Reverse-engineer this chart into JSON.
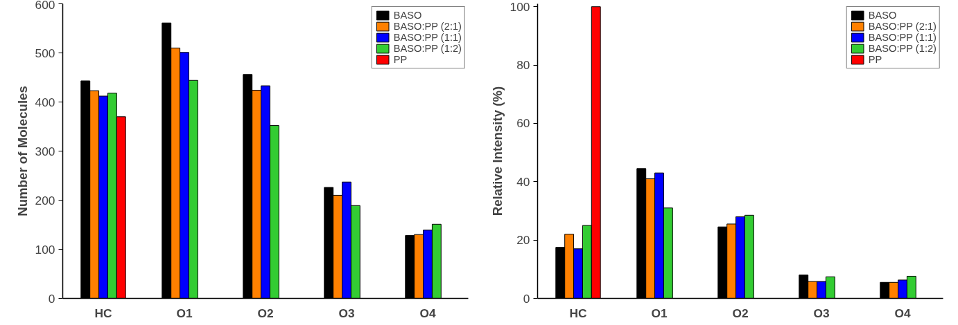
{
  "chart_data": [
    {
      "type": "bar",
      "ylabel": "Number of Molecules",
      "categories": [
        "HC",
        "O1",
        "O2",
        "O3",
        "O4"
      ],
      "ylim": [
        0,
        600
      ],
      "yticks": [
        0,
        100,
        200,
        300,
        400,
        500,
        600
      ],
      "grid": false,
      "legend": "top right",
      "series": [
        {
          "name": "BASO",
          "color": "#000000",
          "values": [
            443,
            561,
            456,
            226,
            128
          ]
        },
        {
          "name": "BASO:PP (2:1)",
          "color": "#ff8000",
          "values": [
            423,
            510,
            424,
            210,
            130
          ]
        },
        {
          "name": "BASO:PP (1:1)",
          "color": "#0000ff",
          "values": [
            412,
            501,
            433,
            237,
            139
          ]
        },
        {
          "name": "BASO:PP (1:2)",
          "color": "#33cc33",
          "values": [
            418,
            444,
            352,
            189,
            151
          ]
        },
        {
          "name": "PP",
          "color": "#ff0000",
          "values": [
            370,
            null,
            null,
            null,
            null
          ]
        }
      ]
    },
    {
      "type": "bar",
      "ylabel": "Relative Intensity (%)",
      "categories": [
        "HC",
        "O1",
        "O2",
        "O3",
        "O4"
      ],
      "ylim": [
        0,
        101
      ],
      "yticks": [
        0,
        20,
        40,
        60,
        80,
        100
      ],
      "grid": false,
      "legend": "top right",
      "series": [
        {
          "name": "BASO",
          "color": "#000000",
          "values": [
            17.5,
            44.5,
            24.5,
            8,
            5.5
          ]
        },
        {
          "name": "BASO:PP (2:1)",
          "color": "#ff8000",
          "values": [
            22,
            41,
            25.5,
            5.8,
            5.5
          ]
        },
        {
          "name": "BASO:PP (1:1)",
          "color": "#0000ff",
          "values": [
            17,
            43,
            28,
            5.8,
            6.3
          ]
        },
        {
          "name": "BASO:PP (1:2)",
          "color": "#33cc33",
          "values": [
            25,
            31,
            28.5,
            7.4,
            7.6
          ]
        },
        {
          "name": "PP",
          "color": "#ff0000",
          "values": [
            100,
            null,
            null,
            null,
            null
          ]
        }
      ]
    }
  ]
}
